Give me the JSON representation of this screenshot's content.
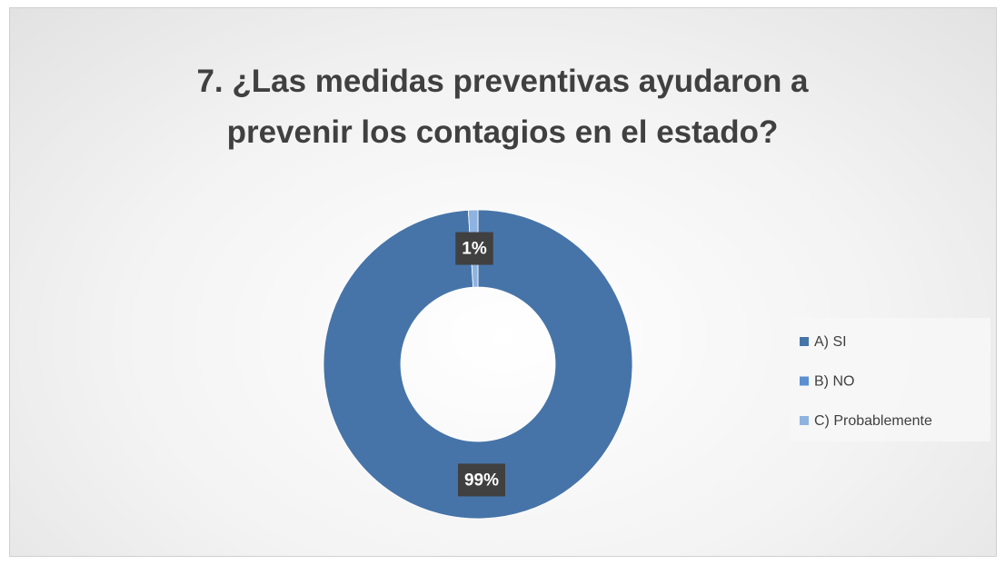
{
  "chart_data": {
    "type": "donut",
    "title": "7. ¿Las medidas preventivas ayudaron a prevenir los contagios en el estado?",
    "categories": [
      "A)  SI",
      "B) NO",
      "C) Probablemente"
    ],
    "values": [
      99,
      0,
      1
    ],
    "value_labels": [
      "99%",
      null,
      "1%"
    ],
    "colors": [
      "#4674a8",
      "#5b8fd0",
      "#8fb3e0"
    ],
    "legend": "right"
  }
}
